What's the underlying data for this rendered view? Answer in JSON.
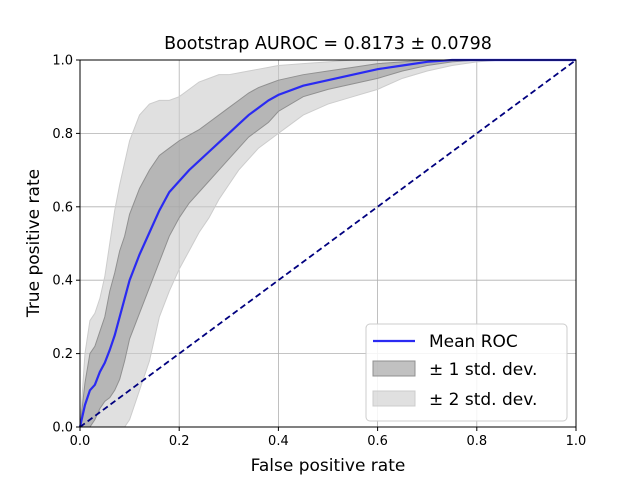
{
  "chart_data": {
    "type": "line",
    "title": "Bootstrap AUROC = 0.8173 ± 0.0798",
    "xlabel": "False positive rate",
    "ylabel": "True positive rate",
    "xlim": [
      0,
      1
    ],
    "ylim": [
      0,
      1
    ],
    "xticks": [
      "0.0",
      "0.2",
      "0.4",
      "0.6",
      "0.8",
      "1.0"
    ],
    "yticks": [
      "0.0",
      "0.2",
      "0.4",
      "0.6",
      "0.8",
      "1.0"
    ],
    "grid": true,
    "legend_position": "lower-right",
    "legend": [
      "Mean ROC",
      "± 1 std. dev.",
      "± 2 std. dev."
    ],
    "colors": {
      "mean": "#2a2af2",
      "band1": "#a0a0a0",
      "band2": "#cccccc",
      "diagonal": "#00007f",
      "grid": "#b0b0b0"
    },
    "x": [
      0,
      0.01,
      0.02,
      0.03,
      0.04,
      0.05,
      0.06,
      0.07,
      0.08,
      0.09,
      0.1,
      0.12,
      0.14,
      0.16,
      0.18,
      0.2,
      0.22,
      0.24,
      0.26,
      0.28,
      0.3,
      0.32,
      0.34,
      0.36,
      0.38,
      0.4,
      0.45,
      0.5,
      0.55,
      0.6,
      0.65,
      0.7,
      0.75,
      0.8,
      0.85,
      0.9,
      0.95,
      1.0
    ],
    "mean": [
      0,
      0.06,
      0.1,
      0.115,
      0.15,
      0.175,
      0.21,
      0.25,
      0.3,
      0.35,
      0.4,
      0.47,
      0.53,
      0.59,
      0.64,
      0.67,
      0.7,
      0.725,
      0.75,
      0.775,
      0.8,
      0.825,
      0.85,
      0.87,
      0.89,
      0.905,
      0.93,
      0.945,
      0.96,
      0.975,
      0.985,
      0.995,
      1.0,
      1.0,
      1.0,
      1.0,
      1.0,
      1.0
    ],
    "band1_upper": [
      0,
      0.12,
      0.2,
      0.22,
      0.26,
      0.3,
      0.37,
      0.42,
      0.48,
      0.52,
      0.58,
      0.65,
      0.7,
      0.74,
      0.76,
      0.78,
      0.795,
      0.81,
      0.83,
      0.85,
      0.87,
      0.89,
      0.91,
      0.925,
      0.935,
      0.945,
      0.96,
      0.97,
      0.98,
      0.99,
      0.995,
      1.0,
      1.0,
      1.0,
      1.0,
      1.0,
      1.0,
      1.0
    ],
    "band1_lower": [
      0,
      0.0,
      0.0,
      0.02,
      0.05,
      0.07,
      0.08,
      0.1,
      0.13,
      0.18,
      0.24,
      0.31,
      0.38,
      0.45,
      0.52,
      0.57,
      0.61,
      0.64,
      0.67,
      0.7,
      0.73,
      0.76,
      0.79,
      0.81,
      0.83,
      0.86,
      0.9,
      0.92,
      0.935,
      0.95,
      0.97,
      0.985,
      0.995,
      1.0,
      1.0,
      1.0,
      1.0,
      1.0
    ],
    "band2_upper": [
      0,
      0.2,
      0.29,
      0.31,
      0.35,
      0.41,
      0.5,
      0.59,
      0.66,
      0.72,
      0.78,
      0.85,
      0.88,
      0.89,
      0.89,
      0.9,
      0.92,
      0.94,
      0.95,
      0.96,
      0.96,
      0.965,
      0.97,
      0.975,
      0.98,
      0.985,
      0.99,
      0.995,
      1.0,
      1.0,
      1.0,
      1.0,
      1.0,
      1.0,
      1.0,
      1.0,
      1.0,
      1.0
    ],
    "band2_lower": [
      0,
      0.0,
      0.0,
      0.0,
      0.0,
      0.0,
      0.0,
      0.0,
      0.0,
      0.0,
      0.02,
      0.1,
      0.18,
      0.3,
      0.37,
      0.43,
      0.48,
      0.53,
      0.57,
      0.62,
      0.66,
      0.7,
      0.73,
      0.76,
      0.78,
      0.8,
      0.85,
      0.88,
      0.9,
      0.92,
      0.95,
      0.97,
      0.985,
      0.995,
      1.0,
      1.0,
      1.0,
      1.0
    ],
    "diagonal": {
      "x": [
        0,
        1
      ],
      "y": [
        0,
        1
      ]
    }
  }
}
